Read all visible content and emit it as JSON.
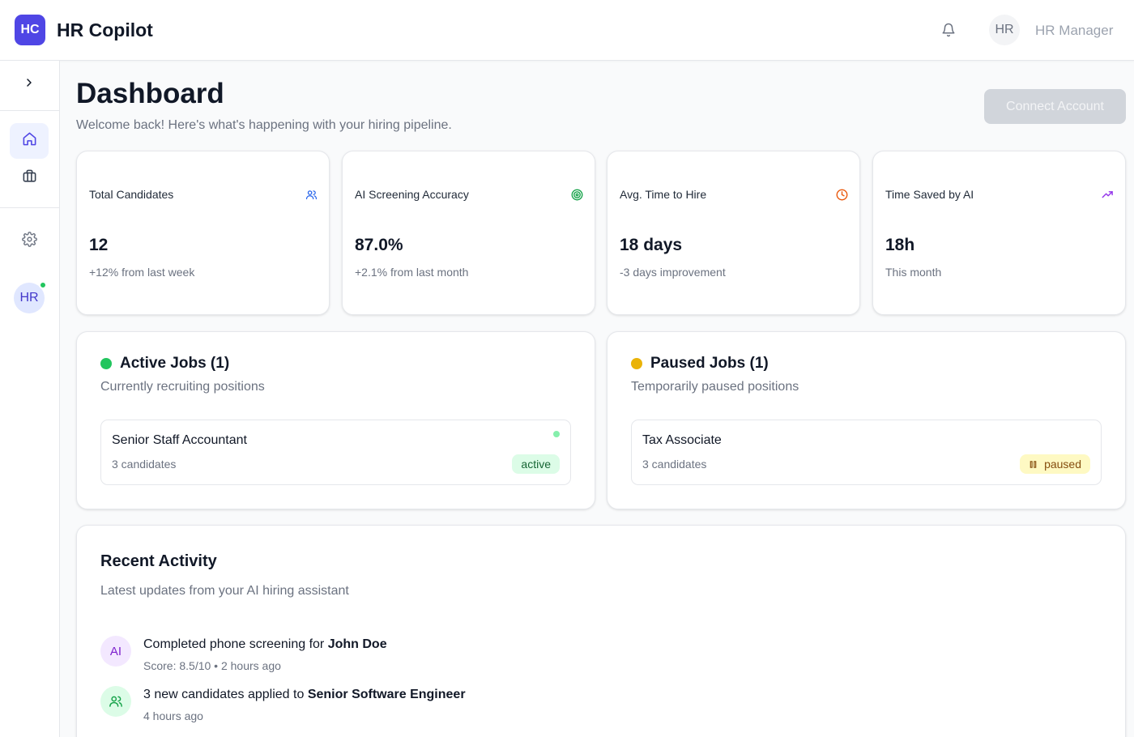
{
  "app": {
    "logo": "HC",
    "title": "HR Copilot"
  },
  "header": {
    "user_initials": "HR",
    "user_name": "HR Manager",
    "notification_icon": "bell-icon"
  },
  "sidebar": {
    "toggle_icon": "chevron-right-icon",
    "items": [
      {
        "icon": "home-icon",
        "active": true
      },
      {
        "icon": "briefcase-icon",
        "active": false
      },
      {
        "icon": "gear-icon",
        "active": false
      }
    ],
    "avatar_initials": "HR",
    "online": true
  },
  "page": {
    "title": "Dashboard",
    "subtitle": "Welcome back! Here's what's happening with your hiring pipeline.",
    "connect_button": "Connect Account"
  },
  "stats": [
    {
      "label": "Total Candidates",
      "value": "12",
      "sub": "+12% from last week",
      "icon": "users-icon",
      "color": "#2563eb"
    },
    {
      "label": "AI Screening Accuracy",
      "value": "87.0%",
      "sub": "+2.1% from last month",
      "icon": "target-icon",
      "color": "#16a34a"
    },
    {
      "label": "Avg. Time to Hire",
      "value": "18 days",
      "sub": "-3 days improvement",
      "icon": "clock-icon",
      "color": "#ea580c"
    },
    {
      "label": "Time Saved by AI",
      "value": "18h",
      "sub": "This month",
      "icon": "trending-up-icon",
      "color": "#9333ea"
    }
  ],
  "active_jobs": {
    "title": "Active Jobs (1)",
    "subtitle": "Currently recruiting positions",
    "dot_color": "#22c55e",
    "items": [
      {
        "title": "Senior Staff Accountant",
        "candidates": "3 candidates",
        "status": "active"
      }
    ]
  },
  "paused_jobs": {
    "title": "Paused Jobs (1)",
    "subtitle": "Temporarily paused positions",
    "dot_color": "#eab308",
    "items": [
      {
        "title": "Tax Associate",
        "candidates": "3 candidates",
        "status": "paused"
      }
    ]
  },
  "activity": {
    "title": "Recent Activity",
    "subtitle": "Latest updates from your AI hiring assistant",
    "items": [
      {
        "avatar": "AI",
        "text": "Completed phone screening for",
        "bold": "John Doe",
        "meta": "Score: 8.5/10 • 2 hours ago"
      },
      {
        "avatar_icon": "users-icon",
        "text": "3 new candidates applied to",
        "bold": "Senior Software Engineer",
        "meta": "4 hours ago"
      }
    ]
  }
}
